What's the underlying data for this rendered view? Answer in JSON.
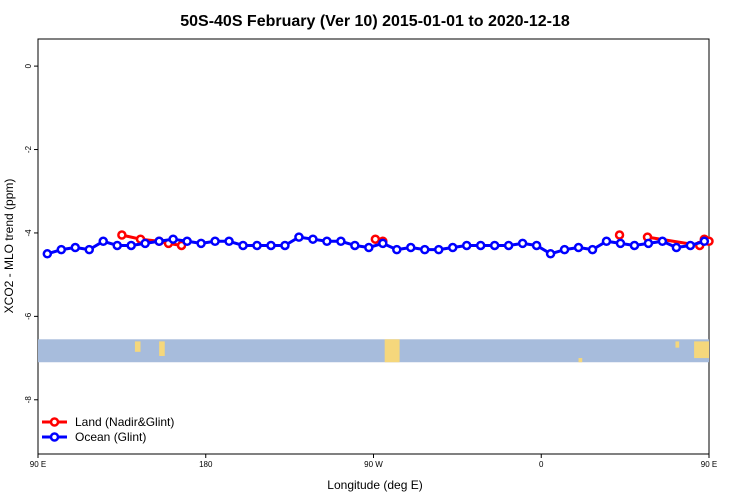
{
  "chart_data": {
    "type": "line",
    "title": "50S-40S February (Ver 10)   2015-01-01 to 2020-12-18",
    "xlabel": "Longitude (deg E)",
    "ylabel": "XCO2 - MLO trend (ppm)",
    "x_axis": {
      "min": 90,
      "max": 450,
      "ticks": [
        {
          "value": 90,
          "label": "90 E"
        },
        {
          "value": 180,
          "label": "180"
        },
        {
          "value": 270,
          "label": "90 W"
        },
        {
          "value": 360,
          "label": "0"
        },
        {
          "value": 450,
          "label": "90 E"
        }
      ]
    },
    "y_axis": {
      "min": -9.3,
      "max": 0.65,
      "ticks": [
        {
          "value": 0,
          "label": "0"
        },
        {
          "value": -2,
          "label": "-2"
        },
        {
          "value": -4,
          "label": "-4"
        },
        {
          "value": -6,
          "label": "-6"
        },
        {
          "value": -8,
          "label": "-8"
        }
      ]
    },
    "series": [
      {
        "name": "Land (Nadir&Glint)",
        "color": "#ff0000",
        "x": [
          135,
          145,
          155,
          160,
          167,
          271,
          275,
          402,
          417,
          445,
          447.5,
          450
        ],
        "y": [
          -4.05,
          -4.15,
          -4.2,
          -4.25,
          -4.3,
          -4.15,
          -4.2,
          -4.05,
          -4.1,
          -4.3,
          -4.15,
          -4.2
        ],
        "segments": [
          [
            0,
            1,
            2,
            3,
            4
          ],
          [
            5,
            6
          ],
          [
            7
          ],
          [
            8,
            9,
            10,
            11
          ]
        ]
      },
      {
        "name": "Ocean (Glint)",
        "color": "#0000ff",
        "x": [
          95,
          102.5,
          110,
          117.5,
          125,
          132.5,
          140,
          147.5,
          155,
          162.5,
          170,
          177.5,
          185,
          192.5,
          200,
          207.5,
          215,
          222.5,
          230,
          237.5,
          245,
          252.5,
          260,
          267.5,
          275,
          282.5,
          290,
          297.5,
          305,
          312.5,
          320,
          327.5,
          335,
          342.5,
          350,
          357.5,
          365,
          372.5,
          380,
          387.5,
          395,
          402.5,
          410,
          417.5,
          425,
          432.5,
          440,
          447.5
        ],
        "y": [
          -4.5,
          -4.4,
          -4.35,
          -4.4,
          -4.2,
          -4.3,
          -4.3,
          -4.25,
          -4.2,
          -4.15,
          -4.2,
          -4.25,
          -4.2,
          -4.2,
          -4.3,
          -4.3,
          -4.3,
          -4.3,
          -4.1,
          -4.15,
          -4.2,
          -4.2,
          -4.3,
          -4.35,
          -4.25,
          -4.4,
          -4.35,
          -4.4,
          -4.4,
          -4.35,
          -4.3,
          -4.3,
          -4.3,
          -4.3,
          -4.25,
          -4.3,
          -4.5,
          -4.4,
          -4.35,
          -4.4,
          -4.2,
          -4.25,
          -4.3,
          -4.25,
          -4.2,
          -4.35,
          -4.3,
          -4.2
        ]
      }
    ],
    "legend": {
      "position": "bottom-left",
      "entries": [
        {
          "label": "Land (Nadir&Glint)",
          "color": "#ff0000"
        },
        {
          "label": "Ocean (Glint)",
          "color": "#0000ff"
        }
      ]
    },
    "map_strip": {
      "y_range": [
        -7.1,
        -6.55
      ],
      "ocean_color": "#a7bcdc",
      "land_color": "#f5d77c",
      "land_spans": [
        {
          "x": [
            155,
            158
          ],
          "y": [
            -6.95,
            -6.6
          ]
        },
        {
          "x": [
            142,
            145
          ],
          "y": [
            -6.85,
            -6.6
          ]
        },
        {
          "x": [
            276,
            284
          ],
          "y": [
            -7.1,
            -6.55
          ]
        },
        {
          "x": [
            380,
            382
          ],
          "y": [
            -7.1,
            -7.0
          ]
        },
        {
          "x": [
            432,
            434
          ],
          "y": [
            -6.75,
            -6.6
          ]
        },
        {
          "x": [
            442,
            450
          ],
          "y": [
            -7.0,
            -6.6
          ]
        }
      ]
    }
  }
}
